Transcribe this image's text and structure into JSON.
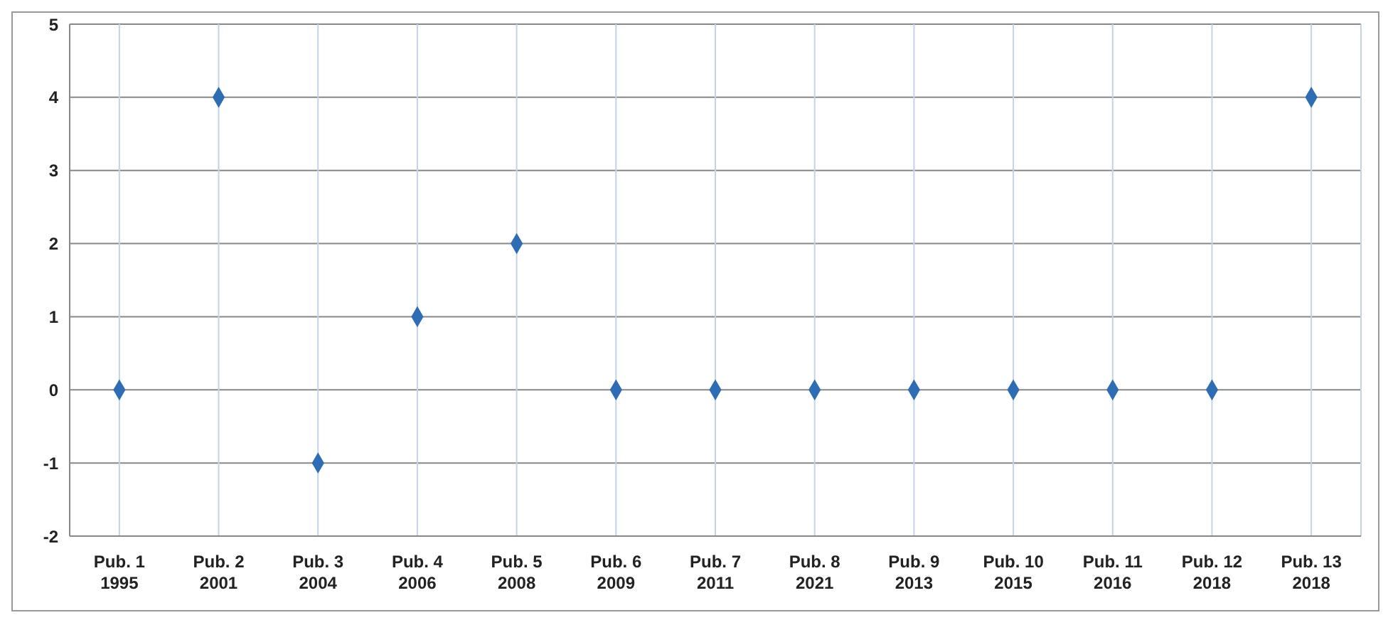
{
  "chart_data": {
    "type": "scatter",
    "categories": [
      "Pub. 1\n1995",
      "Pub. 2\n2001",
      "Pub. 3\n2004",
      "Pub. 4\n2006",
      "Pub. 5\n2008",
      "Pub. 6\n2009",
      "Pub. 7\n2011",
      "Pub. 8\n2021",
      "Pub. 9\n2013",
      "Pub. 10\n2015",
      "Pub. 11\n2016",
      "Pub. 12\n2018",
      "Pub. 13\n2018"
    ],
    "values": [
      0,
      4,
      -1,
      1,
      2,
      0,
      0,
      0,
      0,
      0,
      0,
      0,
      4
    ],
    "color": "#2e6db4",
    "marker": "diamond",
    "ylim": [
      -2,
      5
    ],
    "yticks": [
      -2,
      -1,
      0,
      1,
      2,
      3,
      4,
      5
    ],
    "grid": true
  }
}
